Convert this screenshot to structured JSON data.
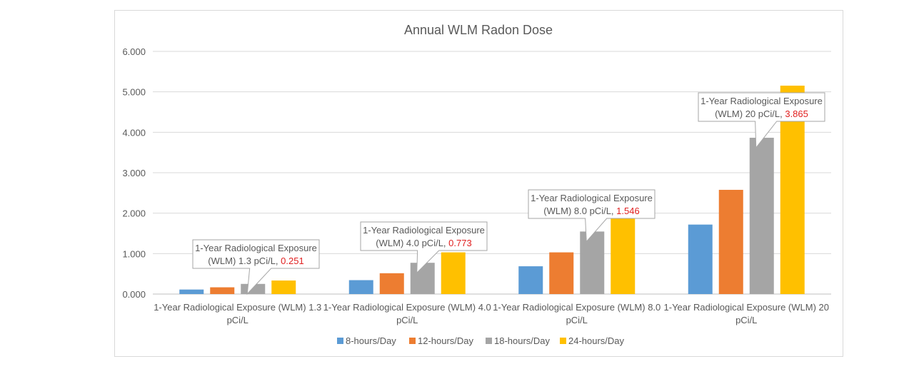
{
  "chart_data": {
    "type": "bar",
    "title": "Annual WLM Radon Dose",
    "xlabel": "",
    "ylabel": "",
    "ylim": [
      0,
      6
    ],
    "yticks": [
      "0.000",
      "1.000",
      "2.000",
      "3.000",
      "4.000",
      "5.000",
      "6.000"
    ],
    "grid": true,
    "legend_position": "bottom",
    "categories": [
      [
        "1-Year Radiological Exposure (WLM) 1.3",
        "pCi/L"
      ],
      [
        "1-Year Radiological Exposure (WLM) 4.0",
        "pCi/L"
      ],
      [
        "1-Year Radiological Exposure (WLM) 8.0",
        "pCi/L"
      ],
      [
        "1-Year Radiological Exposure (WLM) 20",
        "pCi/L"
      ]
    ],
    "series": [
      {
        "name": "8-hours/Day",
        "color": "#5b9bd5",
        "values": [
          0.112,
          0.344,
          0.687,
          1.718
        ]
      },
      {
        "name": "12-hours/Day",
        "color": "#ed7d31",
        "values": [
          0.167,
          0.515,
          1.031,
          2.577
        ]
      },
      {
        "name": "18-hours/Day",
        "color": "#a5a5a5",
        "values": [
          0.251,
          0.773,
          1.546,
          3.865
        ]
      },
      {
        "name": "24-hours/Day",
        "color": "#ffc000",
        "values": [
          0.335,
          1.031,
          2.061,
          5.153
        ]
      }
    ],
    "annotations": [
      {
        "line1": "1-Year Radiological Exposure",
        "line2": "(WLM) 1.3 pCi/L, ",
        "value": "0.251"
      },
      {
        "line1": "1-Year Radiological Exposure",
        "line2": "(WLM) 4.0 pCi/L, ",
        "value": "0.773"
      },
      {
        "line1": "1-Year Radiological Exposure",
        "line2": "(WLM) 8.0 pCi/L, ",
        "value": "1.546"
      },
      {
        "line1": "1-Year Radiological Exposure",
        "line2": "(WLM) 20 pCi/L, ",
        "value": "3.865"
      }
    ],
    "annotation_value_color": "#e02020"
  }
}
